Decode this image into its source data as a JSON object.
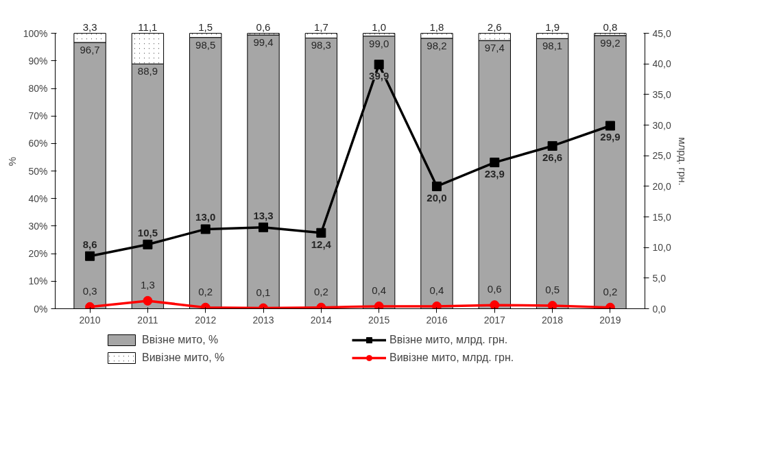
{
  "chart_data": {
    "type": "bar",
    "stacked": true,
    "ylabel": "%",
    "y2label": "млрд. грн.",
    "categories": [
      "2010",
      "2011",
      "2012",
      "2013",
      "2014",
      "2015",
      "2016",
      "2017",
      "2018",
      "2019"
    ],
    "series": [
      {
        "name": "Ввізне мито, %",
        "color": "#a6a6a6",
        "values": [
          96.7,
          88.9,
          98.5,
          99.4,
          98.3,
          99.0,
          98.2,
          97.4,
          98.1,
          99.2
        ],
        "value_labels": [
          "96,7",
          "88,9",
          "98,5",
          "99,4",
          "98,3",
          "99,0",
          "98,2",
          "97,4",
          "98,1",
          "99,2"
        ]
      },
      {
        "name": "Вивізне мито, %",
        "color": "#404040",
        "values": [
          3.3,
          11.1,
          1.5,
          0.6,
          1.7,
          1.0,
          1.8,
          2.6,
          1.9,
          0.8
        ],
        "value_labels": [
          "3,3",
          "11,1",
          "1,5",
          "0,6",
          "1,7",
          "1,0",
          "1,8",
          "2,6",
          "1,9",
          "0,8"
        ]
      },
      {
        "name": "Ввізне мито, млрд. грн.",
        "type": "line",
        "axis": "y2",
        "marker": "square",
        "color": "#000000",
        "values": [
          8.6,
          10.5,
          13.0,
          13.3,
          12.4,
          39.9,
          20.0,
          23.9,
          26.6,
          29.9
        ],
        "value_labels": [
          "8,6",
          "10,5",
          "13,0",
          "13,3",
          "12,4",
          "39,9",
          "20,0",
          "23,9",
          "26,6",
          "29,9"
        ]
      },
      {
        "name": "Вивізне мито, млрд. грн.",
        "type": "line",
        "axis": "y2",
        "marker": "circle",
        "color": "#ff0000",
        "values": [
          0.3,
          1.3,
          0.2,
          0.1,
          0.2,
          0.4,
          0.4,
          0.6,
          0.5,
          0.2
        ],
        "value_labels": [
          "0,3",
          "1,3",
          "0,2",
          "0,1",
          "0,2",
          "0,4",
          "0,4",
          "0,6",
          "0,5",
          "0,2"
        ]
      }
    ],
    "ylim": [
      0,
      100
    ],
    "yticks": [
      {
        "value": 0,
        "label": "0%"
      },
      {
        "value": 10,
        "label": "10%"
      },
      {
        "value": 20,
        "label": "20%"
      },
      {
        "value": 30,
        "label": "30%"
      },
      {
        "value": 40,
        "label": "40%"
      },
      {
        "value": 50,
        "label": "50%"
      },
      {
        "value": 60,
        "label": "60%"
      },
      {
        "value": 70,
        "label": "70%"
      },
      {
        "value": 80,
        "label": "80%"
      },
      {
        "value": 90,
        "label": "90%"
      },
      {
        "value": 100,
        "label": "100%"
      }
    ],
    "y2lim": [
      0,
      45
    ],
    "y2ticks": [
      {
        "value": 0,
        "label": "0,0"
      },
      {
        "value": 5,
        "label": "5,0"
      },
      {
        "value": 10,
        "label": "10,0"
      },
      {
        "value": 15,
        "label": "15,0"
      },
      {
        "value": 20,
        "label": "20,0"
      },
      {
        "value": 25,
        "label": "25,0"
      },
      {
        "value": 30,
        "label": "30,0"
      },
      {
        "value": 35,
        "label": "35,0"
      },
      {
        "value": 40,
        "label": "40,0"
      },
      {
        "value": 45,
        "label": "45,0"
      }
    ],
    "grid": false,
    "legend": "bottom"
  }
}
